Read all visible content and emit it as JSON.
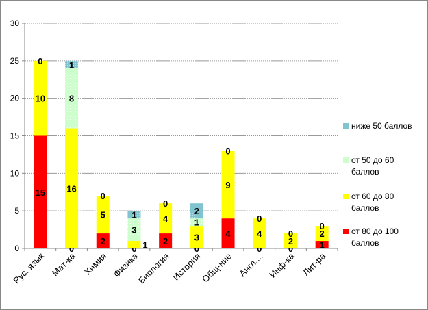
{
  "chart_data": {
    "type": "bar",
    "stacked": true,
    "title": "",
    "xlabel": "",
    "ylabel": "",
    "ylim": [
      0,
      30
    ],
    "yticks": [
      0,
      5,
      10,
      15,
      20,
      25,
      30
    ],
    "grid": true,
    "legend_position": "right",
    "categories": [
      "Рус. язык",
      "Мат-ка",
      "Химия",
      "Физика",
      "Биология",
      "История",
      "Общ-ние",
      "Англ....",
      "Инф-ка",
      "Лит-ра"
    ],
    "series": [
      {
        "name": "от 80 до 100 баллов",
        "color": "#ff0000",
        "values": [
          15,
          0,
          2,
          0,
          2,
          0,
          4,
          0,
          0,
          1
        ]
      },
      {
        "name": "от 60 до 80 баллов",
        "color": "#ffff00",
        "values": [
          10,
          16,
          5,
          1,
          4,
          3,
          9,
          4,
          2,
          2
        ]
      },
      {
        "name": "от 50 до 60 баллов",
        "color": "#ccffcc",
        "values": [
          0,
          8,
          0,
          3,
          0,
          1,
          0,
          0,
          0,
          0
        ]
      },
      {
        "name": "ниже 50 баллов",
        "color": "#7fc4cf",
        "values": [
          null,
          1,
          null,
          1,
          null,
          2,
          null,
          null,
          null,
          null
        ]
      }
    ]
  }
}
